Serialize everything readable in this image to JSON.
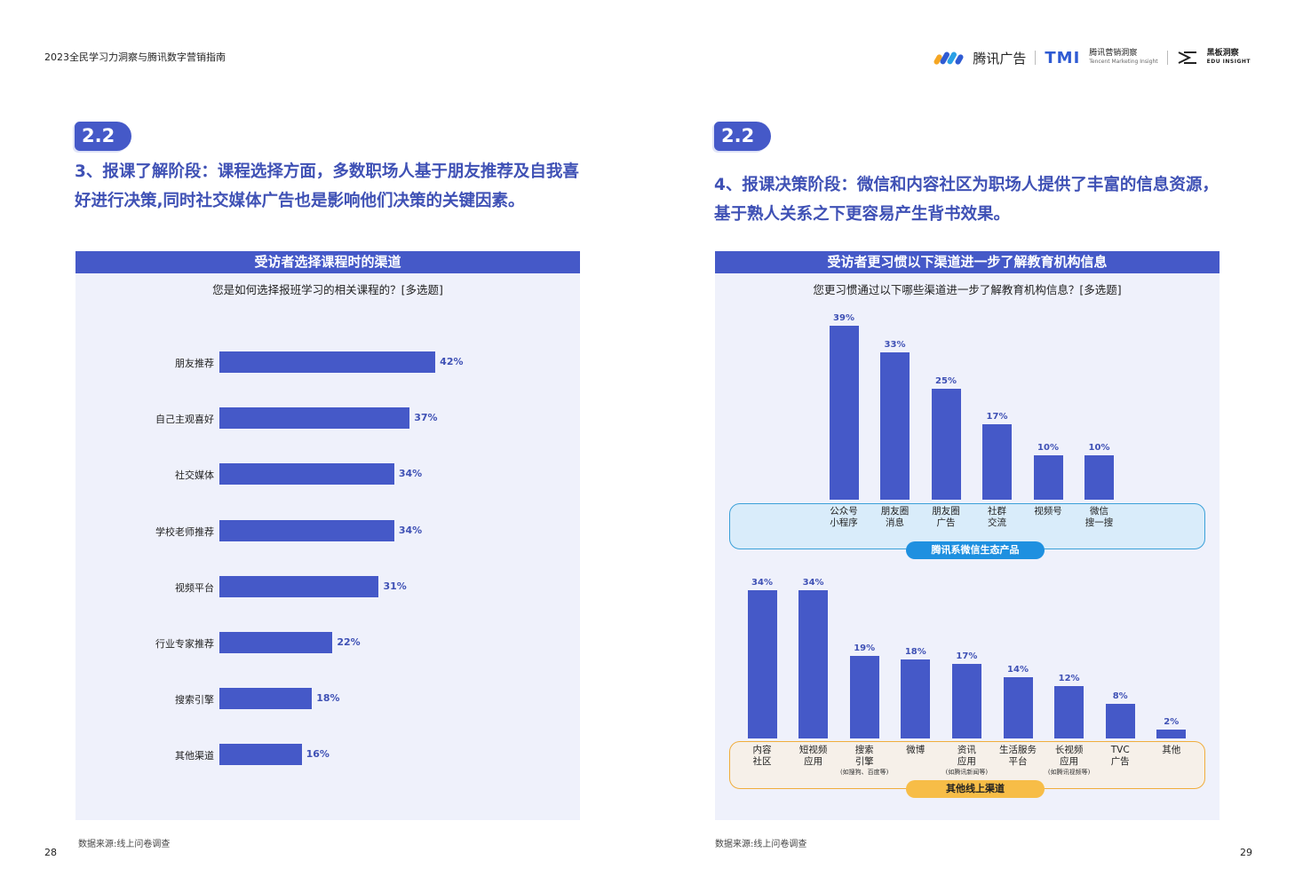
{
  "header": {
    "title": "2023全民学习力洞察与腾讯数字营销指南",
    "logo_tencent_ads": "腾讯广告",
    "logo_tmi": "TMI",
    "logo_tmi_cn": "腾讯营销洞察",
    "logo_tmi_en": "Tencent Marketing Insight",
    "logo_edu_cn": "黑板洞察",
    "logo_edu_en": "EDU INSIGHT"
  },
  "left": {
    "badge": "2.2",
    "heading_line1": "3、报课了解阶段：课程选择方面，多数职场人基于朋友推荐及自我喜",
    "heading_line2": "好进行决策,同时社交媒体广告也是影响他们决策的关键因素。",
    "panel_title": "受访者选择课程时的渠道",
    "question": "您是如何选择报班学习的相关课程的？[多选题]",
    "source": "数据来源:线上问卷调查",
    "page_number": "28"
  },
  "right": {
    "badge": "2.2",
    "heading_line1": "4、报课决策阶段：微信和内容社区为职场人提供了丰富的信息资源，",
    "heading_line2": "基于熟人关系之下更容易产生背书效果。",
    "panel_title": "受访者更习惯以下渠道进一步了解教育机构信息",
    "question": "您更习惯通过以下哪些渠道进一步了解教育机构信息？[多选题]",
    "group1_label": "腾讯系微信生态产品",
    "group2_label": "其他线上渠道",
    "source": "数据来源:线上问卷调查",
    "page_number": "29"
  },
  "chart_data": [
    {
      "type": "bar",
      "orientation": "horizontal",
      "title": "受访者选择课程时的渠道",
      "subtitle": "您是如何选择报班学习的相关课程的？[多选题]",
      "categories": [
        "朋友推荐",
        "自己主观喜好",
        "社交媒体",
        "学校老师推荐",
        "视频平台",
        "行业专家推荐",
        "搜索引擎",
        "其他渠道"
      ],
      "values": [
        42,
        37,
        34,
        34,
        31,
        22,
        18,
        16
      ],
      "value_labels": [
        "42%",
        "37%",
        "34%",
        "34%",
        "31%",
        "22%",
        "18%",
        "16%"
      ],
      "unit": "%",
      "color": "#4559c8"
    },
    {
      "type": "bar",
      "orientation": "vertical",
      "title": "受访者更习惯以下渠道进一步了解教育机构信息",
      "subtitle": "您更习惯通过以下哪些渠道进一步了解教育机构信息？[多选题]",
      "group": "腾讯系微信生态产品",
      "categories": [
        {
          "line1": "公众号",
          "line2": "小程序",
          "note": ""
        },
        {
          "line1": "朋友圈",
          "line2": "消息",
          "note": ""
        },
        {
          "line1": "朋友圈",
          "line2": "广告",
          "note": ""
        },
        {
          "line1": "社群",
          "line2": "交流",
          "note": ""
        },
        {
          "line1": "视频号",
          "line2": "",
          "note": ""
        },
        {
          "line1": "微信",
          "line2": "搜一搜",
          "note": ""
        }
      ],
      "values": [
        39,
        33,
        25,
        17,
        10,
        10
      ],
      "value_labels": [
        "39%",
        "33%",
        "25%",
        "17%",
        "10%",
        "10%"
      ],
      "unit": "%",
      "color": "#4559c8"
    },
    {
      "type": "bar",
      "orientation": "vertical",
      "group": "其他线上渠道",
      "categories": [
        {
          "line1": "内容",
          "line2": "社区",
          "note": ""
        },
        {
          "line1": "短视频",
          "line2": "应用",
          "note": ""
        },
        {
          "line1": "搜索",
          "line2": "引擎",
          "note": "(如搜狗、百度等)"
        },
        {
          "line1": "微博",
          "line2": "",
          "note": ""
        },
        {
          "line1": "资讯",
          "line2": "应用",
          "note": "(如腾讯新闻等)"
        },
        {
          "line1": "生活服务",
          "line2": "平台",
          "note": ""
        },
        {
          "line1": "长视频",
          "line2": "应用",
          "note": "(如腾讯视频等)"
        },
        {
          "line1": "TVC",
          "line2": "广告",
          "note": ""
        },
        {
          "line1": "其他",
          "line2": "",
          "note": ""
        }
      ],
      "values": [
        34,
        34,
        19,
        18,
        17,
        14,
        12,
        8,
        2
      ],
      "value_labels": [
        "34%",
        "34%",
        "19%",
        "18%",
        "17%",
        "14%",
        "12%",
        "8%",
        "2%"
      ],
      "unit": "%",
      "color": "#4559c8"
    }
  ]
}
